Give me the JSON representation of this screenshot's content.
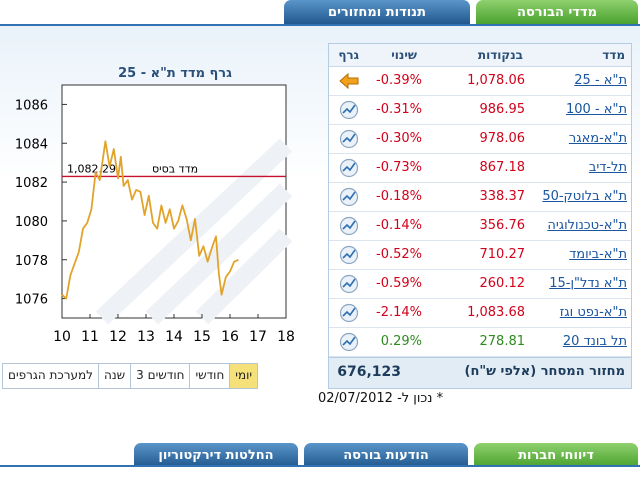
{
  "top_tabs": {
    "active": "מדדי הבורסה",
    "other": "תנודות ומחזורים"
  },
  "table": {
    "headers": {
      "name": "מדד",
      "value": "בנקודות",
      "change": "שינוי",
      "graph": "גרף"
    },
    "rows": [
      {
        "name": "ת\"א - 25",
        "value": "1,078.06",
        "change": "-0.39%",
        "direction": "down",
        "icon": "selected-arrow-icon"
      },
      {
        "name": "ת\"א - 100",
        "value": "986.95",
        "change": "-0.31%",
        "direction": "down",
        "icon": "chart-icon"
      },
      {
        "name": "ת\"א-מאגר",
        "value": "978.06",
        "change": "-0.30%",
        "direction": "down",
        "icon": "chart-icon"
      },
      {
        "name": "תל-דיב",
        "value": "867.18",
        "change": "-0.73%",
        "direction": "down",
        "icon": "chart-icon"
      },
      {
        "name": "ת\"א בלוטק-50",
        "value": "338.37",
        "change": "-0.18%",
        "direction": "down",
        "icon": "chart-icon"
      },
      {
        "name": "ת\"א-טכנולוגיה",
        "value": "356.76",
        "change": "-0.14%",
        "direction": "down",
        "icon": "chart-icon"
      },
      {
        "name": "ת\"א-ביומד",
        "value": "710.27",
        "change": "-0.52%",
        "direction": "down",
        "icon": "chart-icon"
      },
      {
        "name": "ת\"א נדל\"ן-15",
        "value": "260.12",
        "change": "-0.59%",
        "direction": "down",
        "icon": "chart-icon"
      },
      {
        "name": "ת\"א-נפט וגז",
        "value": "1,083.68",
        "change": "-2.14%",
        "direction": "down",
        "icon": "chart-icon"
      },
      {
        "name": "תל בונד 20",
        "value": "278.81",
        "change": "0.29%",
        "direction": "up",
        "icon": "chart-icon"
      }
    ],
    "footer_label": "מחזור המסחר (אלפי ש\"ח)",
    "footer_value": "676,123"
  },
  "chart_title": "גרף מדד ת\"א - 25",
  "chart_data": {
    "type": "line",
    "title": "גרף מדד ת\"א - 25",
    "x_ticks": [
      10,
      11,
      12,
      13,
      14,
      15,
      16,
      17,
      18
    ],
    "y_ticks": [
      1076,
      1078,
      1080,
      1082,
      1084,
      1086
    ],
    "xlim": [
      10,
      18
    ],
    "ylim": [
      1075,
      1087
    ],
    "base_line": {
      "label": "מדד בסיס",
      "value_text": "1,082.29",
      "value": 1082.29
    },
    "series": [
      {
        "color": "#e2a32a",
        "x": [
          10.0,
          10.15,
          10.3,
          10.45,
          10.6,
          10.75,
          10.9,
          11.05,
          11.2,
          11.35,
          11.45,
          11.55,
          11.7,
          11.85,
          12.0,
          12.1,
          12.2,
          12.35,
          12.5,
          12.65,
          12.8,
          12.95,
          13.1,
          13.25,
          13.4,
          13.55,
          13.7,
          13.85,
          14.0,
          14.15,
          14.3,
          14.45,
          14.6,
          14.75,
          14.9,
          15.05,
          15.2,
          15.35,
          15.5,
          15.6,
          15.7,
          15.85,
          16.0,
          16.15,
          16.3
        ],
        "values": [
          1076.2,
          1076.0,
          1077.2,
          1077.8,
          1078.4,
          1079.6,
          1079.9,
          1080.6,
          1082.5,
          1082.1,
          1083.1,
          1084.1,
          1082.8,
          1083.7,
          1082.2,
          1083.3,
          1081.8,
          1082.1,
          1081.1,
          1081.6,
          1081.5,
          1080.3,
          1081.3,
          1079.9,
          1079.6,
          1080.8,
          1079.9,
          1080.6,
          1079.6,
          1080.0,
          1080.8,
          1080.1,
          1079.0,
          1080.1,
          1078.2,
          1078.7,
          1077.9,
          1078.6,
          1079.2,
          1077.3,
          1076.2,
          1077.1,
          1077.4,
          1077.9,
          1078.0
        ]
      }
    ]
  },
  "range_buttons": [
    {
      "label": "למערכת הגרפים",
      "selected": false
    },
    {
      "label": "שנה",
      "selected": false
    },
    {
      "label": "3 חודשים",
      "selected": false
    },
    {
      "label": "חודשי",
      "selected": false
    },
    {
      "label": "יומי",
      "selected": true
    }
  ],
  "date_note": "* נכון ל- 02/07/2012",
  "bottom_tabs": {
    "active": "דיווחי חברות",
    "tab2": "הודעות בורסה",
    "tab3": "החלטות דירקטוריון"
  }
}
